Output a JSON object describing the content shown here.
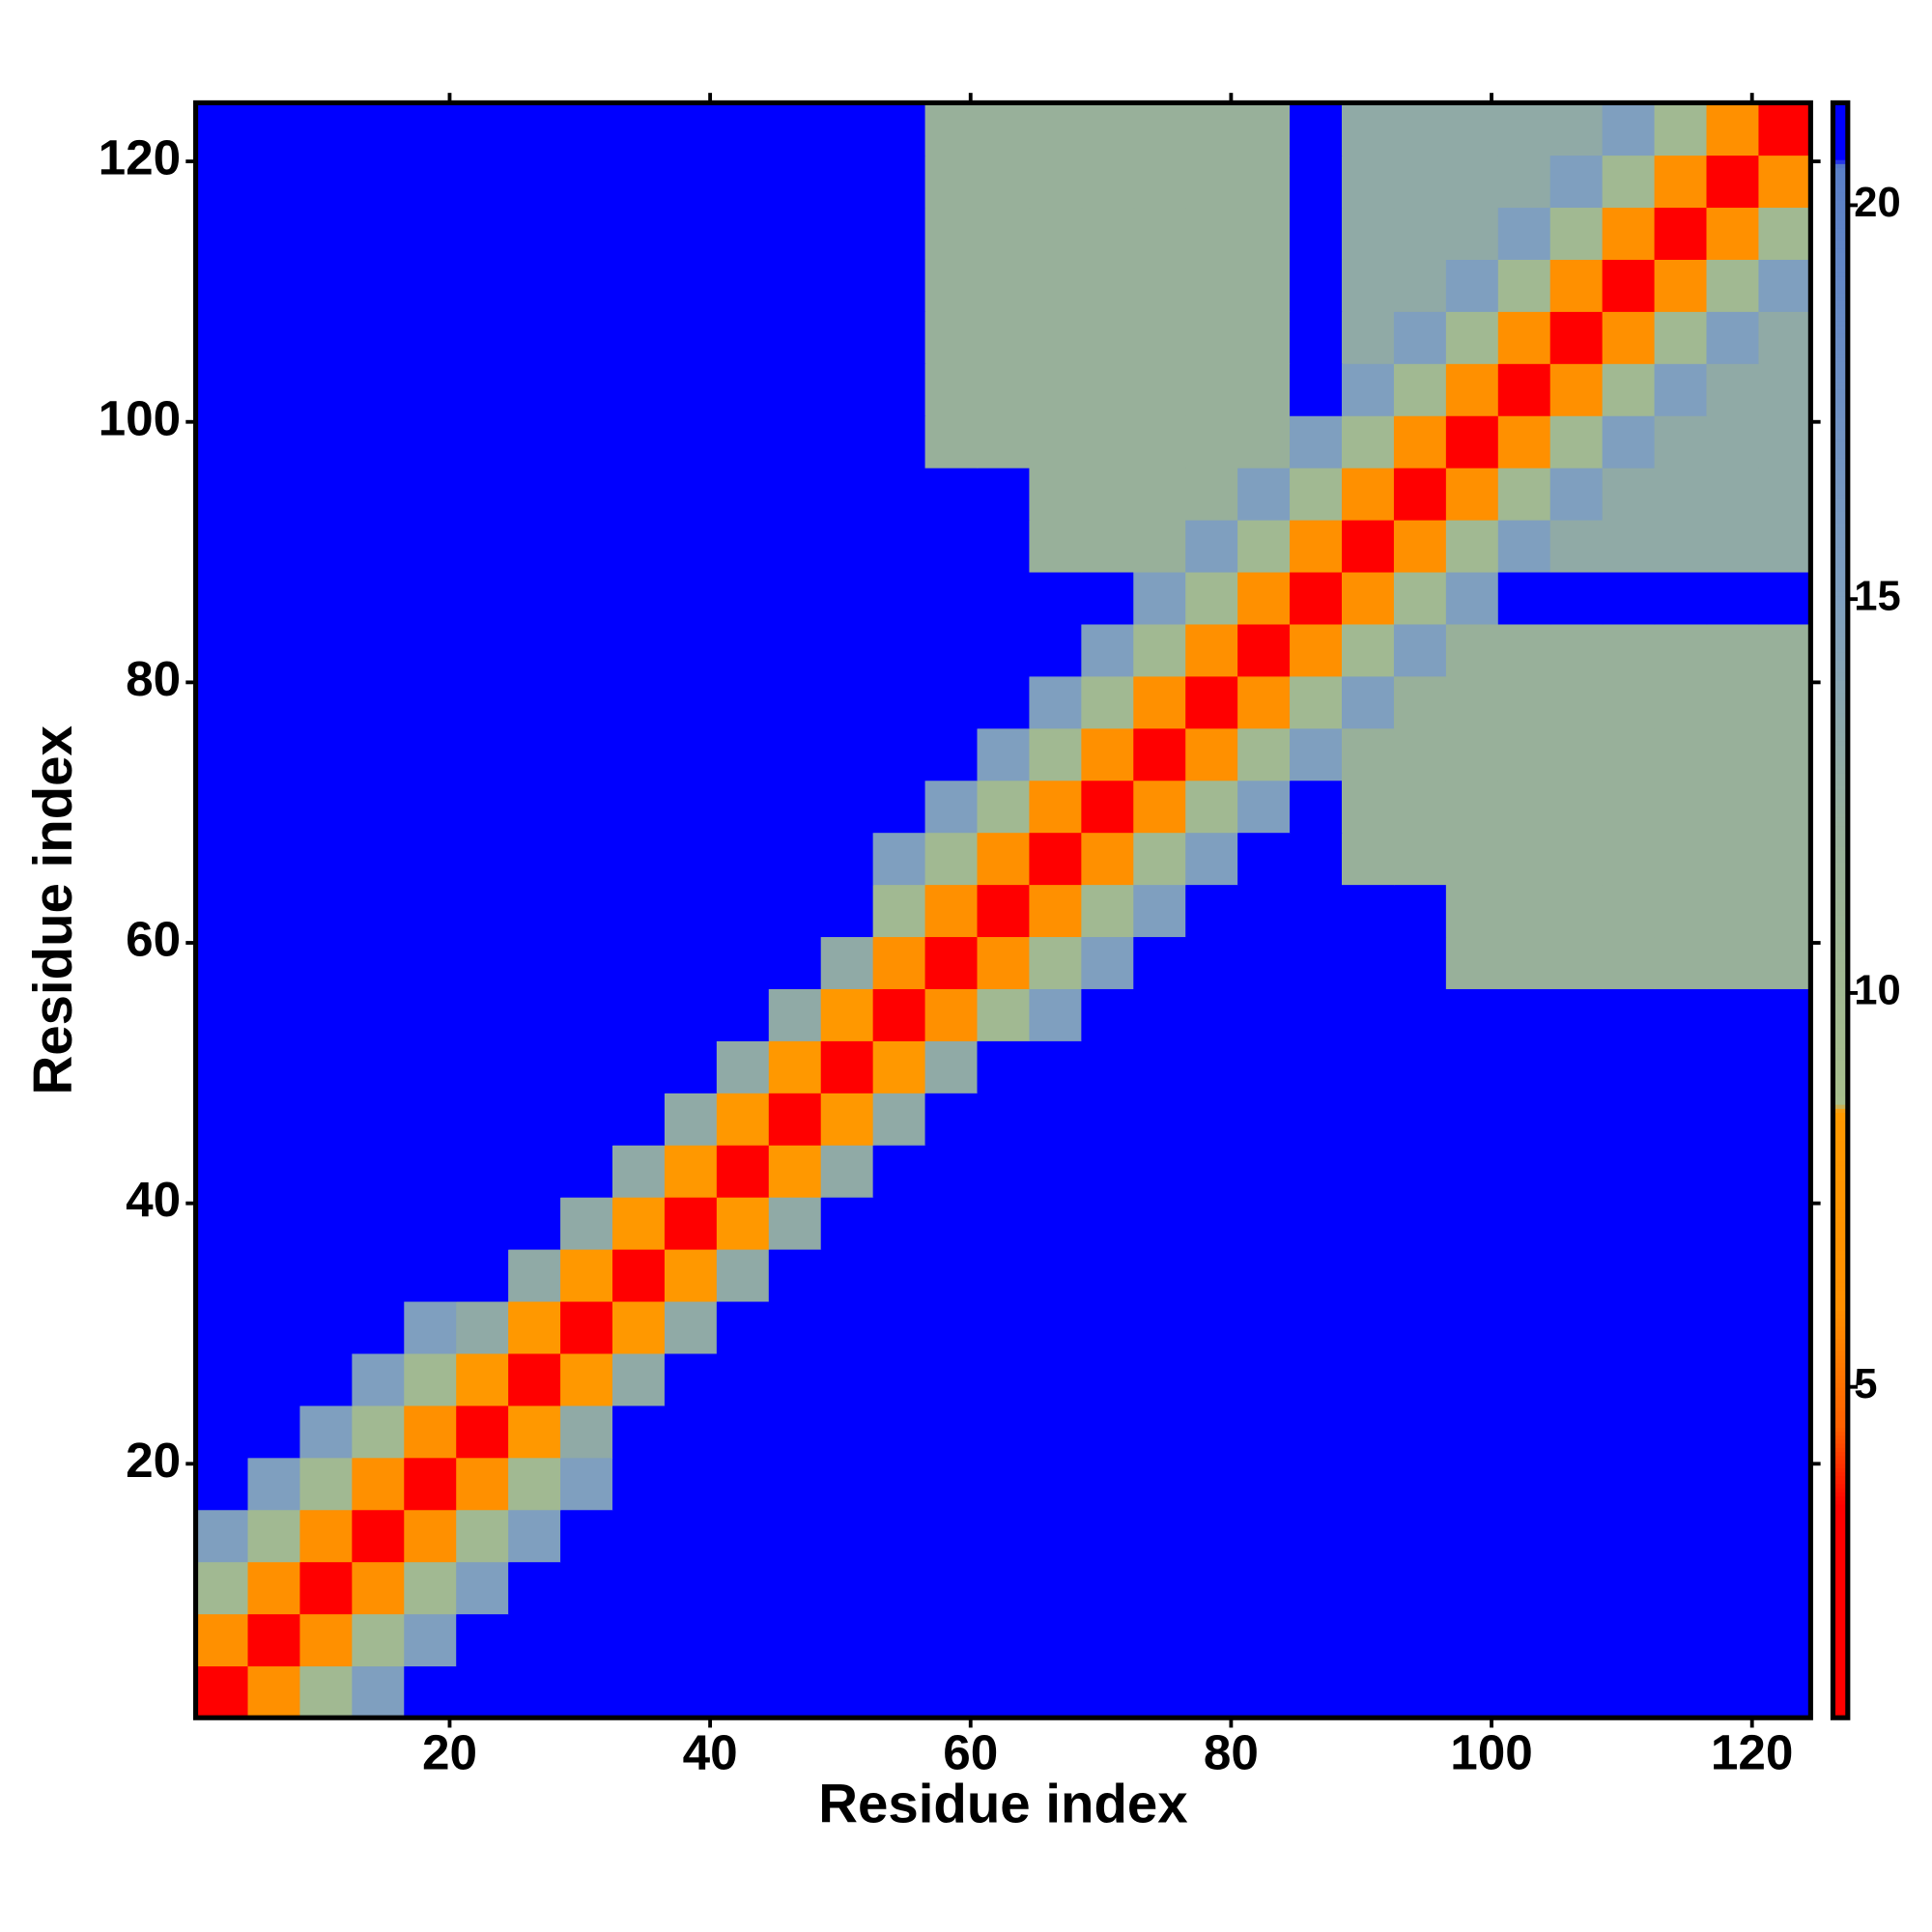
{
  "chart_data": {
    "type": "heatmap",
    "x_label": "Residue index",
    "y_label": "Residue index",
    "xlim": [
      0.5,
      124.5
    ],
    "ylim": [
      0.5,
      124.5
    ],
    "xticks": [
      20,
      40,
      60,
      80,
      100,
      120
    ],
    "yticks": [
      20,
      40,
      60,
      80,
      100,
      120
    ],
    "zlim": [
      0.8,
      21.3
    ],
    "zticks": [
      5,
      10,
      15,
      20
    ],
    "colorscale": [
      [
        0.8,
        "#ff0000"
      ],
      [
        3.5,
        "#ff0000"
      ],
      [
        4.5,
        "#ff6000"
      ],
      [
        6,
        "#ff9000"
      ],
      [
        8.5,
        "#ff9a00"
      ],
      [
        8.6,
        "#a8bf8c"
      ],
      [
        12,
        "#98b09a"
      ],
      [
        15,
        "#7f9fbf"
      ],
      [
        20.5,
        "#5a7fc8"
      ],
      [
        20.6,
        "#0000ff"
      ],
      [
        21.3,
        "#0000ff"
      ]
    ],
    "bins": [
      0.5,
      4.5,
      8.5,
      12.5,
      16.5,
      20.5,
      24.5,
      28.5,
      32.5,
      36.5,
      40.5,
      44.5,
      48.5,
      52.5,
      56.5,
      60.5,
      64.5,
      68.5,
      72.5,
      76.5,
      80.5,
      84.5,
      88.5,
      92.5,
      96.5,
      100.5,
      104.5,
      108.5,
      112.5,
      116.5,
      120.5,
      124.5
    ],
    "z": [
      [
        3,
        6,
        10,
        15,
        21,
        21,
        21,
        21,
        21,
        21,
        21,
        21,
        21,
        21,
        21,
        21,
        21,
        21,
        21,
        21,
        21,
        21,
        21,
        21,
        21,
        21,
        21,
        21,
        21,
        21,
        21
      ],
      [
        6,
        3,
        6,
        10,
        15,
        21,
        21,
        21,
        21,
        21,
        21,
        21,
        21,
        21,
        21,
        21,
        21,
        21,
        21,
        21,
        21,
        21,
        21,
        21,
        21,
        21,
        21,
        21,
        21,
        21,
        21
      ],
      [
        10,
        6,
        3,
        6,
        10,
        15,
        21,
        21,
        21,
        21,
        21,
        21,
        21,
        21,
        21,
        21,
        21,
        21,
        21,
        21,
        21,
        21,
        21,
        21,
        21,
        21,
        21,
        21,
        21,
        21,
        21
      ],
      [
        15,
        10,
        6,
        3,
        6,
        10,
        15,
        21,
        21,
        21,
        21,
        21,
        21,
        21,
        21,
        21,
        21,
        21,
        21,
        21,
        21,
        21,
        21,
        21,
        21,
        21,
        21,
        21,
        21,
        21,
        21
      ],
      [
        21,
        15,
        10,
        6,
        3,
        6,
        10,
        15,
        21,
        21,
        21,
        21,
        21,
        21,
        21,
        21,
        21,
        21,
        21,
        21,
        21,
        21,
        21,
        21,
        21,
        21,
        21,
        21,
        21,
        21,
        21
      ],
      [
        21,
        21,
        15,
        10,
        6,
        3,
        8,
        13,
        21,
        21,
        21,
        21,
        21,
        21,
        21,
        21,
        21,
        21,
        21,
        21,
        21,
        21,
        21,
        21,
        21,
        21,
        21,
        21,
        21,
        21,
        21
      ],
      [
        21,
        21,
        21,
        15,
        10,
        8,
        3,
        8,
        13,
        21,
        21,
        21,
        21,
        21,
        21,
        21,
        21,
        21,
        21,
        21,
        21,
        21,
        21,
        21,
        21,
        21,
        21,
        21,
        21,
        21,
        21
      ],
      [
        21,
        21,
        21,
        21,
        15,
        13,
        8,
        3,
        8,
        13,
        21,
        21,
        21,
        21,
        21,
        21,
        21,
        21,
        21,
        21,
        21,
        21,
        21,
        21,
        21,
        21,
        21,
        21,
        21,
        21,
        21
      ],
      [
        21,
        21,
        21,
        21,
        21,
        21,
        13,
        8,
        3,
        8,
        13,
        21,
        21,
        21,
        21,
        21,
        21,
        21,
        21,
        21,
        21,
        21,
        21,
        21,
        21,
        21,
        21,
        21,
        21,
        21,
        21
      ],
      [
        21,
        21,
        21,
        21,
        21,
        21,
        21,
        13,
        8,
        3,
        8,
        13,
        21,
        21,
        21,
        21,
        21,
        21,
        21,
        21,
        21,
        21,
        21,
        21,
        21,
        21,
        21,
        21,
        21,
        21,
        21
      ],
      [
        21,
        21,
        21,
        21,
        21,
        21,
        21,
        21,
        13,
        8,
        3,
        8,
        13,
        21,
        21,
        21,
        21,
        21,
        21,
        21,
        21,
        21,
        21,
        21,
        21,
        21,
        21,
        21,
        21,
        21,
        21
      ],
      [
        21,
        21,
        21,
        21,
        21,
        21,
        21,
        21,
        21,
        13,
        8,
        3,
        8,
        13,
        21,
        21,
        21,
        21,
        21,
        21,
        21,
        21,
        21,
        21,
        21,
        21,
        21,
        21,
        21,
        21,
        21
      ],
      [
        21,
        21,
        21,
        21,
        21,
        21,
        21,
        21,
        21,
        21,
        13,
        8,
        3,
        8,
        13,
        21,
        21,
        21,
        21,
        21,
        21,
        21,
        21,
        21,
        21,
        21,
        21,
        21,
        21,
        21,
        21
      ],
      [
        21,
        21,
        21,
        21,
        21,
        21,
        21,
        21,
        21,
        21,
        21,
        13,
        8,
        3,
        6,
        10,
        15,
        21,
        21,
        21,
        21,
        21,
        21,
        21,
        21,
        21,
        21,
        21,
        21,
        21,
        21
      ],
      [
        21,
        21,
        21,
        21,
        21,
        21,
        21,
        21,
        21,
        21,
        21,
        21,
        13,
        6,
        3,
        6,
        10,
        15,
        21,
        21,
        21,
        21,
        21,
        21,
        12,
        12,
        12,
        12,
        12,
        12,
        12
      ],
      [
        21,
        21,
        21,
        21,
        21,
        21,
        21,
        21,
        21,
        21,
        21,
        21,
        21,
        10,
        6,
        3,
        6,
        10,
        15,
        21,
        21,
        21,
        21,
        21,
        12,
        12,
        12,
        12,
        12,
        12,
        12
      ],
      [
        21,
        21,
        21,
        21,
        21,
        21,
        21,
        21,
        21,
        21,
        21,
        21,
        21,
        15,
        10,
        6,
        3,
        6,
        10,
        15,
        21,
        21,
        12,
        12,
        12,
        12,
        12,
        12,
        12,
        12,
        12
      ],
      [
        21,
        21,
        21,
        21,
        21,
        21,
        21,
        21,
        21,
        21,
        21,
        21,
        21,
        21,
        15,
        10,
        6,
        3,
        6,
        10,
        15,
        21,
        12,
        12,
        12,
        12,
        12,
        12,
        12,
        12,
        12
      ],
      [
        21,
        21,
        21,
        21,
        21,
        21,
        21,
        21,
        21,
        21,
        21,
        21,
        21,
        21,
        21,
        15,
        10,
        6,
        3,
        6,
        10,
        15,
        12,
        12,
        12,
        12,
        12,
        12,
        12,
        12,
        12
      ],
      [
        21,
        21,
        21,
        21,
        21,
        21,
        21,
        21,
        21,
        21,
        21,
        21,
        21,
        21,
        21,
        21,
        15,
        10,
        6,
        3,
        6,
        10,
        15,
        12,
        12,
        12,
        12,
        12,
        12,
        12,
        12
      ],
      [
        21,
        21,
        21,
        21,
        21,
        21,
        21,
        21,
        21,
        21,
        21,
        21,
        21,
        21,
        21,
        21,
        21,
        15,
        10,
        6,
        3,
        6,
        10,
        15,
        12,
        12,
        12,
        12,
        12,
        12,
        12
      ],
      [
        21,
        21,
        21,
        21,
        21,
        21,
        21,
        21,
        21,
        21,
        21,
        21,
        21,
        21,
        21,
        21,
        21,
        21,
        15,
        10,
        6,
        3,
        6,
        10,
        15,
        21,
        21,
        21,
        21,
        21,
        21
      ],
      [
        21,
        21,
        21,
        21,
        21,
        21,
        21,
        21,
        21,
        21,
        21,
        21,
        21,
        21,
        21,
        21,
        12,
        12,
        12,
        15,
        10,
        6,
        3,
        6,
        10,
        15,
        13,
        13,
        13,
        13,
        13
      ],
      [
        21,
        21,
        21,
        21,
        21,
        21,
        21,
        21,
        21,
        21,
        21,
        21,
        21,
        21,
        21,
        21,
        12,
        12,
        12,
        12,
        15,
        10,
        6,
        3,
        6,
        10,
        15,
        13,
        13,
        13,
        13
      ],
      [
        21,
        21,
        21,
        21,
        21,
        21,
        21,
        21,
        21,
        21,
        21,
        21,
        21,
        21,
        12,
        12,
        12,
        12,
        12,
        12,
        12,
        15,
        10,
        6,
        3,
        6,
        10,
        15,
        13,
        13,
        13
      ],
      [
        21,
        21,
        21,
        21,
        21,
        21,
        21,
        21,
        21,
        21,
        21,
        21,
        21,
        21,
        12,
        12,
        12,
        12,
        12,
        12,
        12,
        21,
        15,
        10,
        6,
        3,
        6,
        10,
        15,
        13,
        13
      ],
      [
        21,
        21,
        21,
        21,
        21,
        21,
        21,
        21,
        21,
        21,
        21,
        21,
        21,
        21,
        12,
        12,
        12,
        12,
        12,
        12,
        12,
        21,
        13,
        15,
        10,
        6,
        3,
        6,
        10,
        15,
        13
      ],
      [
        21,
        21,
        21,
        21,
        21,
        21,
        21,
        21,
        21,
        21,
        21,
        21,
        21,
        21,
        12,
        12,
        12,
        12,
        12,
        12,
        12,
        21,
        13,
        13,
        15,
        10,
        6,
        3,
        6,
        10,
        15
      ],
      [
        21,
        21,
        21,
        21,
        21,
        21,
        21,
        21,
        21,
        21,
        21,
        21,
        21,
        21,
        12,
        12,
        12,
        12,
        12,
        12,
        12,
        21,
        13,
        13,
        13,
        15,
        10,
        6,
        3,
        6,
        10
      ],
      [
        21,
        21,
        21,
        21,
        21,
        21,
        21,
        21,
        21,
        21,
        21,
        21,
        21,
        21,
        12,
        12,
        12,
        12,
        12,
        12,
        12,
        21,
        13,
        13,
        13,
        13,
        15,
        10,
        6,
        3,
        6
      ],
      [
        21,
        21,
        21,
        21,
        21,
        21,
        21,
        21,
        21,
        21,
        21,
        21,
        21,
        21,
        12,
        12,
        12,
        12,
        12,
        12,
        12,
        21,
        13,
        13,
        13,
        13,
        13,
        15,
        10,
        6,
        3
      ]
    ]
  }
}
